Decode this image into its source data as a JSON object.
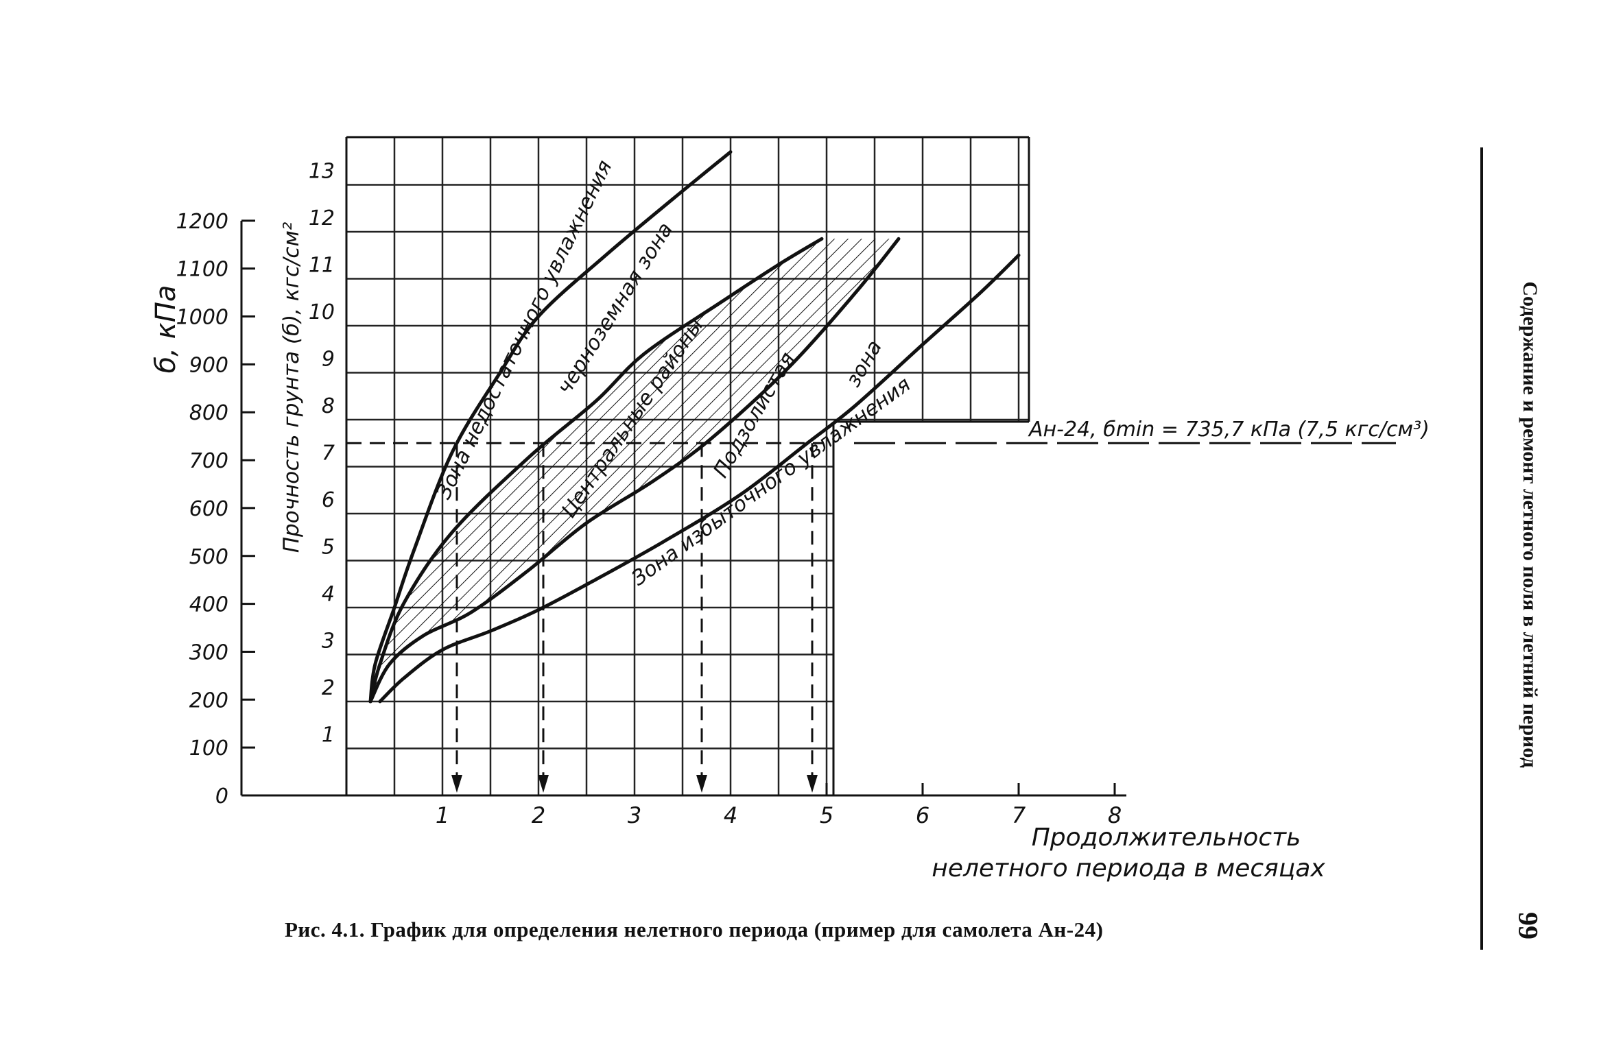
{
  "page": {
    "caption": "Рис. 4.1. График для определения нелетного периода (пример для самолета Ан-24)",
    "running_head": "Содержание и ремонт летного поля в летний период",
    "page_number": "99"
  },
  "chart_data": {
    "type": "line",
    "ylabel_kpa": "б, кПа",
    "ylabel_kgf": "Прочность грунта (б), кгс/см²",
    "xlabel_line1": "Продолжительность",
    "xlabel_line2": "нелетного периода в месяцах",
    "xlim": [
      0,
      8
    ],
    "ylim_kgf": [
      0,
      13
    ],
    "ylim_kpa": [
      0,
      1200
    ],
    "x_ticks": [
      "1",
      "2",
      "3",
      "4",
      "5",
      "6",
      "7",
      "8"
    ],
    "y_ticks_kgf": [
      "1",
      "2",
      "3",
      "4",
      "5",
      "6",
      "7",
      "8",
      "9",
      "10",
      "11",
      "12",
      "13"
    ],
    "y_ticks_kpa": [
      "0",
      "100",
      "200",
      "300",
      "400",
      "500",
      "600",
      "700",
      "800",
      "900",
      "1000",
      "1100",
      "1200"
    ],
    "series": [
      {
        "key": "c1",
        "values": [
          [
            0.25,
            2
          ],
          [
            0.3,
            2.8
          ],
          [
            0.5,
            4
          ],
          [
            0.7,
            5.2
          ],
          [
            1.1,
            7.3
          ],
          [
            1.6,
            9.0
          ],
          [
            2.0,
            10.2
          ],
          [
            2.7,
            11.5
          ],
          [
            3.4,
            12.7
          ],
          [
            4.0,
            13.7
          ]
        ]
      },
      {
        "key": "c2",
        "values": [
          [
            0.25,
            2
          ],
          [
            0.35,
            2.8
          ],
          [
            0.6,
            4.1
          ],
          [
            1.1,
            5.6
          ],
          [
            1.9,
            7.2
          ],
          [
            2.6,
            8.4
          ],
          [
            3.1,
            9.4
          ],
          [
            3.9,
            10.5
          ],
          [
            4.5,
            11.3
          ],
          [
            4.95,
            11.85
          ]
        ]
      },
      {
        "key": "c3",
        "values": [
          [
            0.25,
            2
          ],
          [
            0.45,
            2.8
          ],
          [
            0.8,
            3.4
          ],
          [
            1.3,
            3.9
          ],
          [
            1.9,
            4.8
          ],
          [
            2.5,
            5.8
          ],
          [
            3.2,
            6.7
          ],
          [
            3.8,
            7.6
          ],
          [
            4.6,
            9.1
          ],
          [
            5.3,
            10.7
          ],
          [
            5.75,
            11.85
          ]
        ]
      },
      {
        "key": "c4",
        "values": [
          [
            0.35,
            2
          ],
          [
            0.6,
            2.5
          ],
          [
            1.0,
            3.1
          ],
          [
            1.5,
            3.5
          ],
          [
            2.0,
            3.95
          ],
          [
            2.6,
            4.6
          ],
          [
            3.3,
            5.4
          ],
          [
            4.1,
            6.4
          ],
          [
            4.8,
            7.5
          ],
          [
            5.3,
            8.3
          ],
          [
            6.0,
            9.6
          ],
          [
            6.6,
            10.7
          ],
          [
            7.0,
            11.5
          ]
        ]
      }
    ],
    "hatched_region": {
      "upper": "c2",
      "lower": "c3",
      "label": "Центральные районы"
    },
    "annotations": {
      "zone_top": "Зона недостаточного увлажнения",
      "zone_chern": "черноземная зона",
      "zone_central": "Центральные районы",
      "zone_podz_1": "Подзолистая",
      "zone_podz_2": "зона",
      "zone_bottom": "Зона избыточного увлажнения",
      "example": "Ан-24, бmin = 735,7 кПа (7,5 кгс/см³)"
    },
    "example": {
      "y_kgf": 7.5,
      "intersections_x": [
        1.15,
        2.05,
        3.7,
        4.85
      ]
    },
    "grid": true
  }
}
